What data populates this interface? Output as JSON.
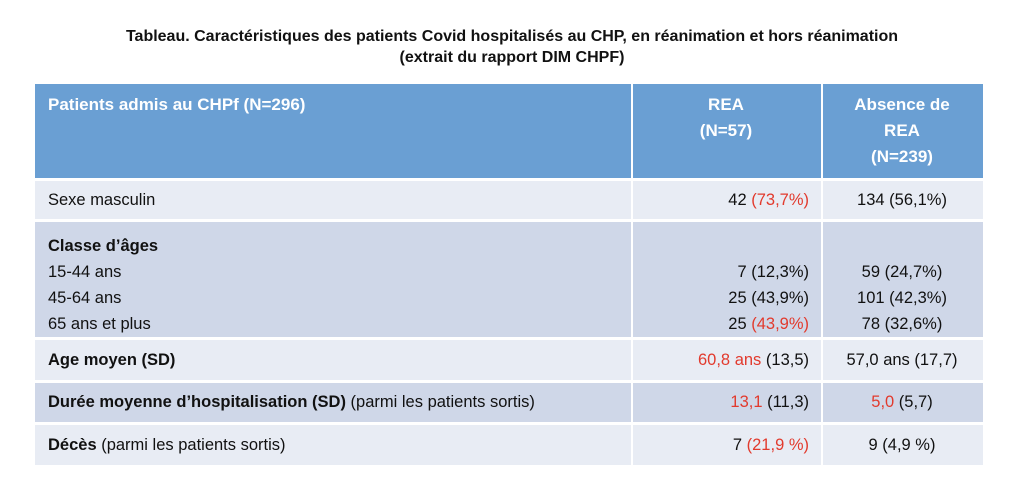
{
  "title": {
    "line1": "Tableau. Caractéristiques des patients Covid hospitalisés au CHP, en réanimation et hors réanimation",
    "line2": "(extrait du rapport DIM CHPF)"
  },
  "header": {
    "col1": "Patients admis au CHPf (N=296)",
    "col2_line1": "REA",
    "col2_line2": "(N=57)",
    "col3_line1": "Absence de",
    "col3_line2": "REA",
    "col3_line3": "(N=239)"
  },
  "rows": {
    "sexe": {
      "label": "Sexe masculin",
      "rea_n": "42 ",
      "rea_pct": "(73,7%)",
      "abs": "134 (56,1%)"
    },
    "age": {
      "label": "Classe d’âges",
      "sub": [
        {
          "label": "15-44 ans",
          "rea_n": "7 ",
          "rea_pct": "(12,3%)",
          "abs": "59 (24,7%)"
        },
        {
          "label": "45-64 ans",
          "rea_n": "25 ",
          "rea_pct": "(43,9%)",
          "abs": "101 (42,3%)"
        },
        {
          "label": "65 ans et plus",
          "rea_n": "25 ",
          "rea_pct": "(43,9%)",
          "abs": "78 (32,6%)"
        }
      ]
    },
    "age_moyen": {
      "label": "Age moyen (SD)",
      "rea_val": "60,8 ans",
      "rea_sd": " (13,5)",
      "abs": "57,0 ans (17,7)"
    },
    "duree": {
      "label_bold": "Durée moyenne d’hospitalisation (SD)",
      "label_rest": " (parmi les patients sortis)",
      "rea_val": "13,1",
      "rea_sd": " (11,3)",
      "abs_val": "5,0",
      "abs_sd": " (5,7)"
    },
    "deces": {
      "label_bold": "Décès",
      "label_rest": " (parmi les patients sortis)",
      "rea_n": "7 ",
      "rea_pct": "(21,9 %)",
      "abs": "9 (4,9 %)"
    }
  },
  "colors": {
    "header_bg": "#6a9fd3",
    "row_light": "#e8ecf4",
    "row_dark": "#cfd7e8",
    "highlight_red": "#e23a2d"
  }
}
